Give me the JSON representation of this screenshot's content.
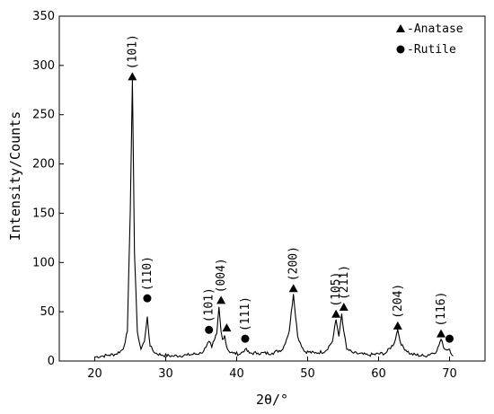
{
  "chart_data": {
    "type": "line",
    "xlabel": "2θ/°",
    "ylabel": "Intensity/Counts",
    "xlim": [
      15,
      75
    ],
    "ylim": [
      0,
      350
    ],
    "x_ticks": [
      "20",
      "30",
      "40",
      "50",
      "60",
      "70"
    ],
    "y_ticks": [
      "0",
      "50",
      "100",
      "150",
      "200",
      "250",
      "300",
      "350"
    ],
    "legend_position": "top-right",
    "legend": [
      {
        "marker": "triangle",
        "label": "-Anatase"
      },
      {
        "marker": "circle",
        "label": "-Rutile"
      }
    ],
    "series": [
      {
        "type": "line",
        "x": [
          20.0,
          21.0,
          22.0,
          23.0,
          24.0,
          24.6,
          25.0,
          25.3,
          25.6,
          26.0,
          26.5,
          27.0,
          27.4,
          27.8,
          28.5,
          29.5,
          31.0,
          33.0,
          35.0,
          35.7,
          36.1,
          36.5,
          36.9,
          37.2,
          37.5,
          37.8,
          38.0,
          38.3,
          38.6,
          38.9,
          39.5,
          40.5,
          41.2,
          41.8,
          43.0,
          45.0,
          46.5,
          47.4,
          48.0,
          48.6,
          49.5,
          51.0,
          52.5,
          53.5,
          54.0,
          54.4,
          54.8,
          55.1,
          55.5,
          56.5,
          58.5,
          61.0,
          62.2,
          62.7,
          63.2,
          64.5,
          66.5,
          68.2,
          68.8,
          69.3,
          70.0,
          70.5
        ],
        "y": [
          4,
          5,
          6,
          7,
          12,
          30,
          150,
          285,
          110,
          30,
          12,
          20,
          45,
          15,
          8,
          6,
          5,
          6,
          8,
          14,
          20,
          14,
          22,
          28,
          55,
          30,
          22,
          26,
          14,
          10,
          8,
          7,
          12,
          8,
          8,
          8,
          12,
          30,
          68,
          25,
          10,
          8,
          10,
          20,
          42,
          25,
          48,
          30,
          12,
          8,
          6,
          8,
          18,
          32,
          16,
          7,
          5,
          10,
          22,
          12,
          12,
          5
        ]
      }
    ],
    "peaks": [
      {
        "x": 25.3,
        "y": 285,
        "marker": "triangle",
        "label": "(101)"
      },
      {
        "x": 27.4,
        "y": 60,
        "marker": "circle",
        "label": "(110)"
      },
      {
        "x": 36.1,
        "y": 28,
        "marker": "circle",
        "label": "(101)"
      },
      {
        "x": 37.8,
        "y": 58,
        "marker": "triangle",
        "label": "(004)"
      },
      {
        "x": 38.6,
        "y": 30,
        "marker": "triangle",
        "label": ""
      },
      {
        "x": 41.2,
        "y": 19,
        "marker": "circle",
        "label": "(111)"
      },
      {
        "x": 48.0,
        "y": 70,
        "marker": "triangle",
        "label": "(200)"
      },
      {
        "x": 54.0,
        "y": 44,
        "marker": "triangle",
        "label": "(105)"
      },
      {
        "x": 55.1,
        "y": 51,
        "marker": "triangle",
        "label": "(211)"
      },
      {
        "x": 62.7,
        "y": 32,
        "marker": "triangle",
        "label": "(204)"
      },
      {
        "x": 68.8,
        "y": 24,
        "marker": "triangle",
        "label": "(116)"
      },
      {
        "x": 70.0,
        "y": 19,
        "marker": "circle",
        "label": ""
      }
    ]
  }
}
